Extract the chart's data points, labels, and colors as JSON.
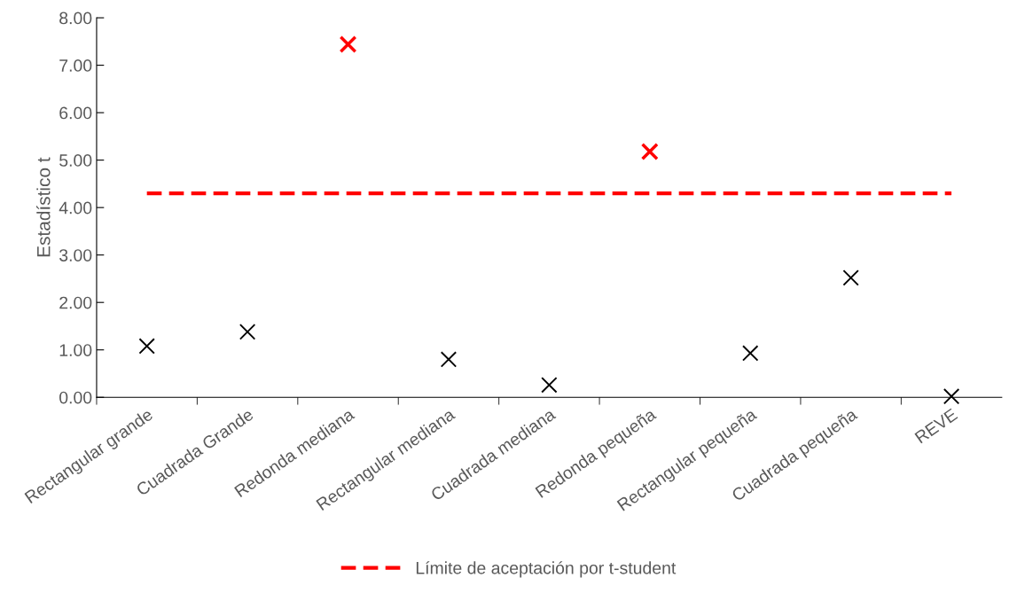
{
  "chart_data": {
    "type": "scatter",
    "ylabel": "Estadístico t",
    "categories": [
      "Rectangular grande",
      "Cuadrada Grande",
      "Redonda mediana",
      "Rectangular mediana",
      "Cuadrada mediana",
      "Redonda pequeña",
      "Rectangular pequeña",
      "Cuadrada pequeña",
      "REVE"
    ],
    "series": [
      {
        "marker": "cross",
        "colors": [
          "#000000",
          "#000000",
          "#ff0000",
          "#000000",
          "#000000",
          "#ff0000",
          "#000000",
          "#000000",
          "#000000"
        ],
        "values": [
          1.08,
          1.38,
          7.44,
          0.8,
          0.26,
          5.18,
          0.93,
          2.52,
          0.02
        ]
      },
      {
        "type": "line",
        "name": "Límite de aceptación por t-student",
        "color": "#ff0000",
        "line_style": "dashed",
        "marker": "none",
        "values": [
          4.3,
          4.3,
          4.3,
          4.3,
          4.3,
          4.3,
          4.3,
          4.3,
          4.3
        ]
      }
    ],
    "ylim": [
      0,
      8
    ],
    "yticks": [
      {
        "value": 0,
        "label": "0.00"
      },
      {
        "value": 1,
        "label": "1.00"
      },
      {
        "value": 2,
        "label": "2.00"
      },
      {
        "value": 3,
        "label": "3.00"
      },
      {
        "value": 4,
        "label": "4.00"
      },
      {
        "value": 5,
        "label": "5.00"
      },
      {
        "value": 6,
        "label": "6.00"
      },
      {
        "value": 7,
        "label": "7.00"
      },
      {
        "value": 8,
        "label": "8.00"
      }
    ],
    "grid": false,
    "legend": "bottom"
  }
}
